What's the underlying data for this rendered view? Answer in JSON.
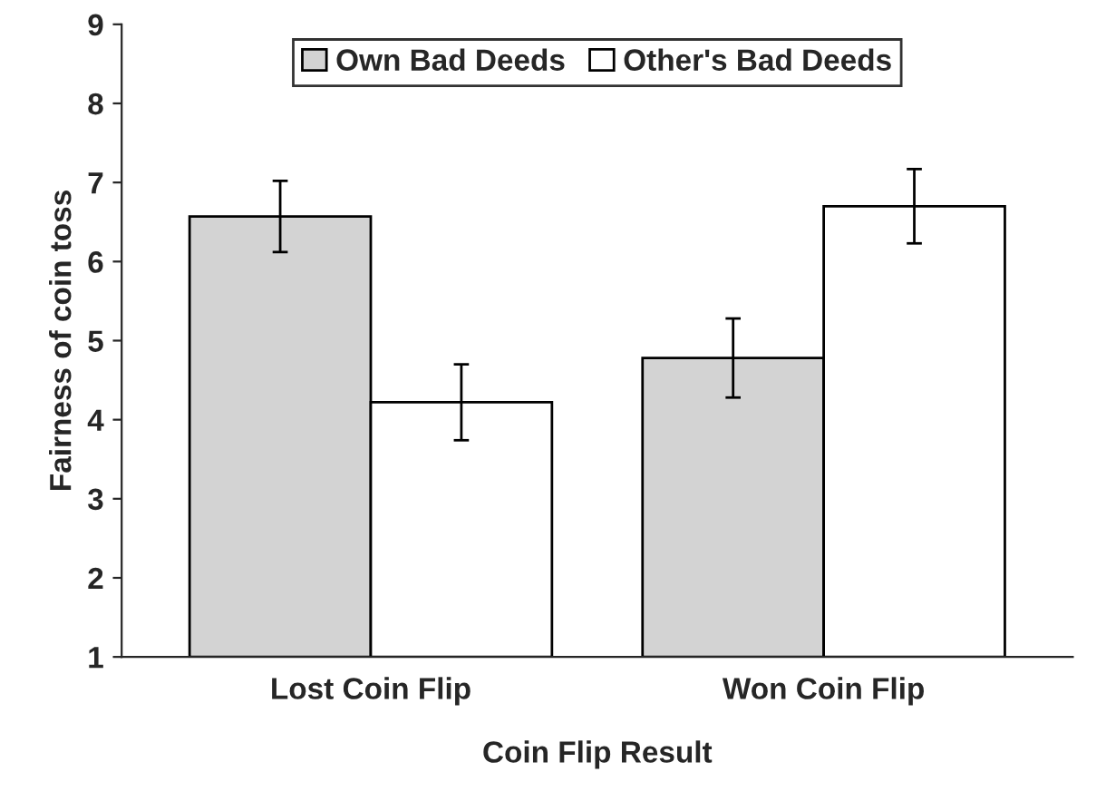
{
  "chart_data": {
    "type": "bar",
    "xlabel": "Coin Flip Result",
    "ylabel": "Fairness of coin toss",
    "categories": [
      "Lost Coin Flip",
      "Won Coin Flip"
    ],
    "series": [
      {
        "name": "Own Bad Deeds",
        "color": "#d3d3d3",
        "values": [
          6.57,
          4.78
        ],
        "errors": [
          0.45,
          0.5
        ]
      },
      {
        "name": "Other's Bad Deeds",
        "color": "#ffffff",
        "values": [
          4.22,
          6.7
        ],
        "errors": [
          0.48,
          0.47
        ]
      }
    ],
    "ylim": [
      1,
      9
    ],
    "yticks": [
      1,
      2,
      3,
      4,
      5,
      6,
      7,
      8,
      9
    ],
    "grid": false,
    "legend": "top"
  }
}
